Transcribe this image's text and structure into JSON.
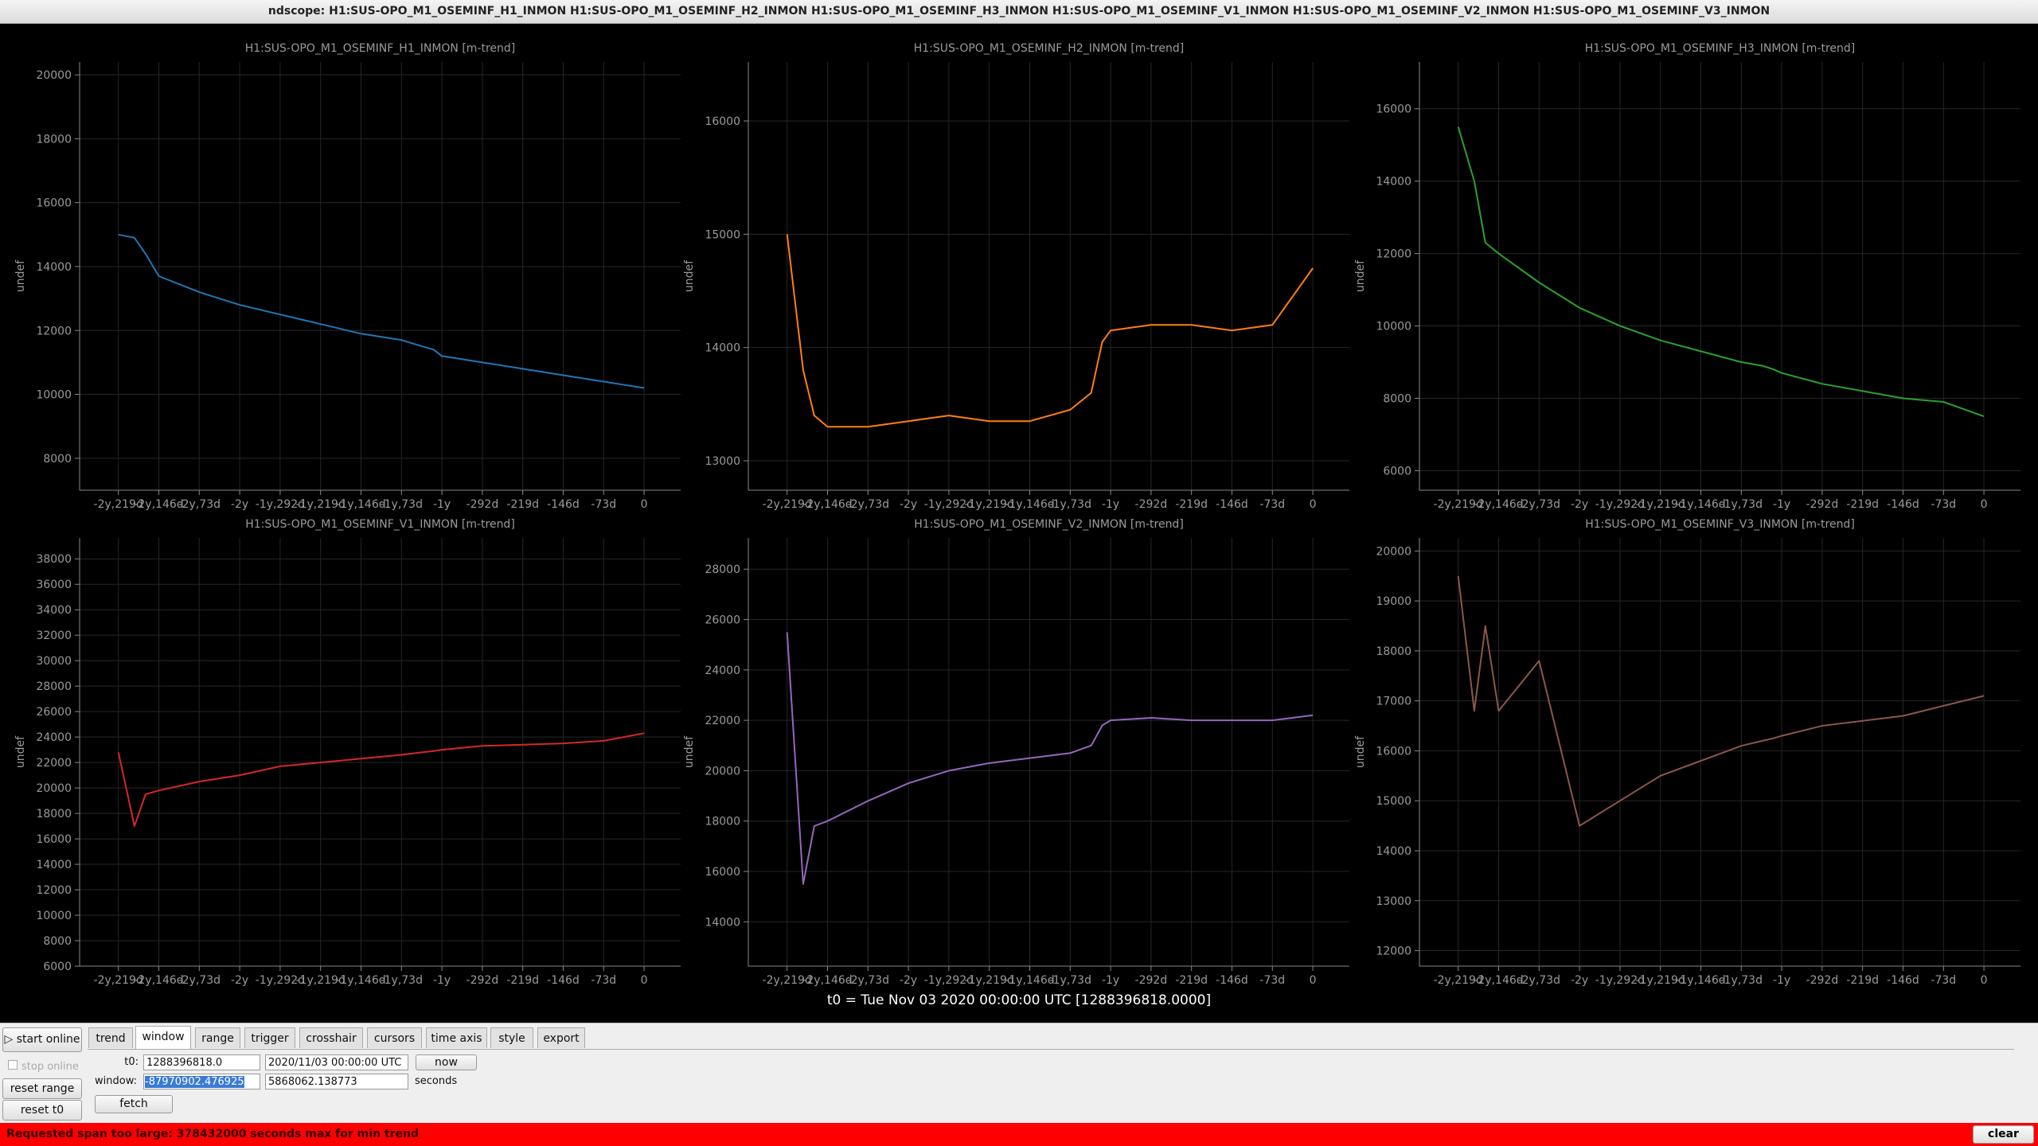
{
  "ui": {
    "window_title": "ndscope: H1:SUS-OPO_M1_OSEMINF_H1_INMON H1:SUS-OPO_M1_OSEMINF_H2_INMON H1:SUS-OPO_M1_OSEMINF_H3_INMON H1:SUS-OPO_M1_OSEMINF_V1_INMON H1:SUS-OPO_M1_OSEMINF_V2_INMON H1:SUS-OPO_M1_OSEMINF_V3_INMON",
    "t0_display": "t0 = Tue Nov 03 2020 00:00:00 UTC [1288396818.0000]",
    "tabs": [
      "trend",
      "window",
      "range",
      "trigger",
      "crosshair",
      "cursors",
      "time axis",
      "style",
      "export"
    ],
    "buttons": {
      "start_online": "start online",
      "stop_online": "stop online",
      "reset_range": "reset range",
      "reset_t0": "reset t0",
      "now": "now",
      "fetch": "fetch",
      "clear": "clear"
    },
    "fields": {
      "t0_label": "t0:",
      "t0_gps": "1288396818.0",
      "t0_utc": "2020/11/03 00:00:00 UTC",
      "window_label": "window:",
      "window_start": "-87970902.476925",
      "window_end": "5868062.138773",
      "window_unit": "seconds"
    },
    "status": "Requested span too large: 378432000 seconds max for min trend"
  },
  "chart_data": [
    {
      "type": "line",
      "title": "H1:SUS-OPO_M1_OSEMINF_H1_INMON [m-trend]",
      "y_label": "undef",
      "color": "#1f77b4",
      "grid": true,
      "x": [
        -949,
        -920,
        -900,
        -876,
        -803,
        -730,
        -657,
        -584,
        -511,
        -438,
        -400,
        -380,
        -365,
        -292,
        -219,
        -146,
        -73,
        0
      ],
      "values": [
        15000,
        14900,
        14400,
        13700,
        13200,
        12800,
        12500,
        12200,
        11900,
        11700,
        11500,
        11400,
        11200,
        11000,
        10800,
        10600,
        10400,
        10200
      ],
      "xlim": [
        -1019,
        66
      ],
      "xticks": [
        {
          "value": -949,
          "label": "-2y,219d"
        },
        {
          "value": -876,
          "label": "-2y,146d"
        },
        {
          "value": -803,
          "label": "-2y,73d"
        },
        {
          "value": -730,
          "label": "-2y"
        },
        {
          "value": -657,
          "label": "-1y,292d"
        },
        {
          "value": -584,
          "label": "-1y,219d"
        },
        {
          "value": -511,
          "label": "-1y,146d"
        },
        {
          "value": -438,
          "label": "-1y,73d"
        },
        {
          "value": -365,
          "label": "-1y"
        },
        {
          "value": -292,
          "label": "-292d"
        },
        {
          "value": -219,
          "label": "-219d"
        },
        {
          "value": -146,
          "label": "-146d"
        },
        {
          "value": -73,
          "label": "-73d"
        },
        0
      ],
      "ylim": [
        7000,
        20400
      ],
      "yticks": [
        8000,
        10000,
        12000,
        14000,
        16000,
        18000,
        20000
      ]
    },
    {
      "type": "line",
      "title": "H1:SUS-OPO_M1_OSEMINF_H2_INMON [m-trend]",
      "y_label": "undef",
      "color": "#ff7f0e",
      "grid": true,
      "x": [
        -949,
        -920,
        -900,
        -876,
        -803,
        -730,
        -657,
        -584,
        -511,
        -438,
        -400,
        -380,
        -365,
        -292,
        -219,
        -146,
        -73,
        0
      ],
      "values": [
        15000,
        13800,
        13400,
        13300,
        13300,
        13350,
        13400,
        13350,
        13350,
        13450,
        13600,
        14050,
        14150,
        14200,
        14200,
        14150,
        14200,
        14700
      ],
      "xlim": [
        -1019,
        66
      ],
      "xticks": [
        {
          "value": -949,
          "label": "-2y,219d"
        },
        {
          "value": -876,
          "label": "-2y,146d"
        },
        {
          "value": -803,
          "label": "-2y,73d"
        },
        {
          "value": -730,
          "label": "-2y"
        },
        {
          "value": -657,
          "label": "-1y,292d"
        },
        {
          "value": -584,
          "label": "-1y,219d"
        },
        {
          "value": -511,
          "label": "-1y,146d"
        },
        {
          "value": -438,
          "label": "-1y,73d"
        },
        {
          "value": -365,
          "label": "-1y"
        },
        {
          "value": -292,
          "label": "-292d"
        },
        {
          "value": -219,
          "label": "-219d"
        },
        {
          "value": -146,
          "label": "-146d"
        },
        {
          "value": -73,
          "label": "-73d"
        },
        0
      ],
      "ylim": [
        12740,
        16520
      ],
      "yticks": [
        13000,
        14000,
        15000,
        16000
      ]
    },
    {
      "type": "line",
      "title": "H1:SUS-OPO_M1_OSEMINF_H3_INMON [m-trend]",
      "y_label": "undef",
      "color": "#2ca02c",
      "grid": true,
      "x": [
        -949,
        -920,
        -900,
        -876,
        -803,
        -730,
        -657,
        -584,
        -511,
        -438,
        -400,
        -380,
        -365,
        -292,
        -219,
        -146,
        -73,
        0
      ],
      "values": [
        15500,
        14000,
        12300,
        12000,
        11200,
        10500,
        10000,
        9600,
        9300,
        9000,
        8900,
        8800,
        8700,
        8400,
        8200,
        8000,
        7900,
        7500
      ],
      "xlim": [
        -1019,
        66
      ],
      "xticks": [
        {
          "value": -949,
          "label": "-2y,219d"
        },
        {
          "value": -876,
          "label": "-2y,146d"
        },
        {
          "value": -803,
          "label": "-2y,73d"
        },
        {
          "value": -730,
          "label": "-2y"
        },
        {
          "value": -657,
          "label": "-1y,292d"
        },
        {
          "value": -584,
          "label": "-1y,219d"
        },
        {
          "value": -511,
          "label": "-1y,146d"
        },
        {
          "value": -438,
          "label": "-1y,73d"
        },
        {
          "value": -365,
          "label": "-1y"
        },
        {
          "value": -292,
          "label": "-292d"
        },
        {
          "value": -219,
          "label": "-219d"
        },
        {
          "value": -146,
          "label": "-146d"
        },
        {
          "value": -73,
          "label": "-73d"
        },
        0
      ],
      "ylim": [
        5460,
        17290
      ],
      "yticks": [
        6000,
        8000,
        10000,
        12000,
        14000,
        16000
      ]
    },
    {
      "type": "line",
      "title": "H1:SUS-OPO_M1_OSEMINF_V1_INMON [m-trend]",
      "y_label": "undef",
      "color": "#d62728",
      "grid": true,
      "x": [
        -949,
        -920,
        -900,
        -876,
        -803,
        -730,
        -657,
        -584,
        -511,
        -438,
        -400,
        -380,
        -365,
        -292,
        -219,
        -146,
        -73,
        0
      ],
      "values": [
        22800,
        17000,
        19500,
        19800,
        20500,
        21000,
        21700,
        22000,
        22300,
        22600,
        22800,
        22900,
        23000,
        23300,
        23400,
        23500,
        23700,
        24300
      ],
      "xlim": [
        -1019,
        66
      ],
      "xticks": [
        {
          "value": -949,
          "label": "-2y,219d"
        },
        {
          "value": -876,
          "label": "-2y,146d"
        },
        {
          "value": -803,
          "label": "-2y,73d"
        },
        {
          "value": -730,
          "label": "-2y"
        },
        {
          "value": -657,
          "label": "-1y,292d"
        },
        {
          "value": -584,
          "label": "-1y,219d"
        },
        {
          "value": -511,
          "label": "-1y,146d"
        },
        {
          "value": -438,
          "label": "-1y,73d"
        },
        {
          "value": -365,
          "label": "-1y"
        },
        {
          "value": -292,
          "label": "-292d"
        },
        {
          "value": -219,
          "label": "-219d"
        },
        {
          "value": -146,
          "label": "-146d"
        },
        {
          "value": -73,
          "label": "-73d"
        },
        0
      ],
      "ylim": [
        6000,
        39640
      ],
      "yticks": [
        6000,
        8000,
        10000,
        12000,
        14000,
        16000,
        18000,
        20000,
        22000,
        24000,
        26000,
        28000,
        30000,
        32000,
        34000,
        36000,
        38000
      ]
    },
    {
      "type": "line",
      "title": "H1:SUS-OPO_M1_OSEMINF_V2_INMON [m-trend]",
      "y_label": "undef",
      "color": "#9467bd",
      "grid": true,
      "x": [
        -949,
        -920,
        -900,
        -876,
        -803,
        -730,
        -657,
        -584,
        -511,
        -438,
        -400,
        -380,
        -365,
        -292,
        -219,
        -146,
        -73,
        0
      ],
      "values": [
        25500,
        15500,
        17800,
        18000,
        18800,
        19500,
        20000,
        20300,
        20500,
        20700,
        21000,
        21800,
        22000,
        22100,
        22000,
        22000,
        22000,
        22200
      ],
      "xlim": [
        -1019,
        66
      ],
      "xticks": [
        {
          "value": -949,
          "label": "-2y,219d"
        },
        {
          "value": -876,
          "label": "-2y,146d"
        },
        {
          "value": -803,
          "label": "-2y,73d"
        },
        {
          "value": -730,
          "label": "-2y"
        },
        {
          "value": -657,
          "label": "-1y,292d"
        },
        {
          "value": -584,
          "label": "-1y,219d"
        },
        {
          "value": -511,
          "label": "-1y,146d"
        },
        {
          "value": -438,
          "label": "-1y,73d"
        },
        {
          "value": -365,
          "label": "-1y"
        },
        {
          "value": -292,
          "label": "-292d"
        },
        {
          "value": -219,
          "label": "-219d"
        },
        {
          "value": -146,
          "label": "-146d"
        },
        {
          "value": -73,
          "label": "-73d"
        },
        0
      ],
      "ylim": [
        12240,
        29240
      ],
      "yticks": [
        14000,
        16000,
        18000,
        20000,
        22000,
        24000,
        26000,
        28000
      ]
    },
    {
      "type": "line",
      "title": "H1:SUS-OPO_M1_OSEMINF_V3_INMON [m-trend]",
      "y_label": "undef",
      "color": "#8c564b",
      "grid": true,
      "x": [
        -949,
        -920,
        -900,
        -876,
        -803,
        -730,
        -657,
        -584,
        -511,
        -438,
        -400,
        -380,
        -365,
        -292,
        -219,
        -146,
        -73,
        0
      ],
      "values": [
        19500,
        16800,
        18500,
        16800,
        17800,
        14500,
        15000,
        15500,
        15800,
        16100,
        16200,
        16250,
        16300,
        16500,
        16600,
        16700,
        16900,
        17100
      ],
      "xlim": [
        -1019,
        66
      ],
      "xticks": [
        {
          "value": -949,
          "label": "-2y,219d"
        },
        {
          "value": -876,
          "label": "-2y,146d"
        },
        {
          "value": -803,
          "label": "-2y,73d"
        },
        {
          "value": -730,
          "label": "-2y"
        },
        {
          "value": -657,
          "label": "-1y,292d"
        },
        {
          "value": -584,
          "label": "-1y,219d"
        },
        {
          "value": -511,
          "label": "-1y,146d"
        },
        {
          "value": -438,
          "label": "-1y,73d"
        },
        {
          "value": -365,
          "label": "-1y"
        },
        {
          "value": -292,
          "label": "-292d"
        },
        {
          "value": -219,
          "label": "-219d"
        },
        {
          "value": -146,
          "label": "-146d"
        },
        {
          "value": -73,
          "label": "-73d"
        },
        0
      ],
      "ylim": [
        11690,
        20260
      ],
      "yticks": [
        12000,
        13000,
        14000,
        15000,
        16000,
        17000,
        18000,
        19000,
        20000
      ]
    }
  ]
}
